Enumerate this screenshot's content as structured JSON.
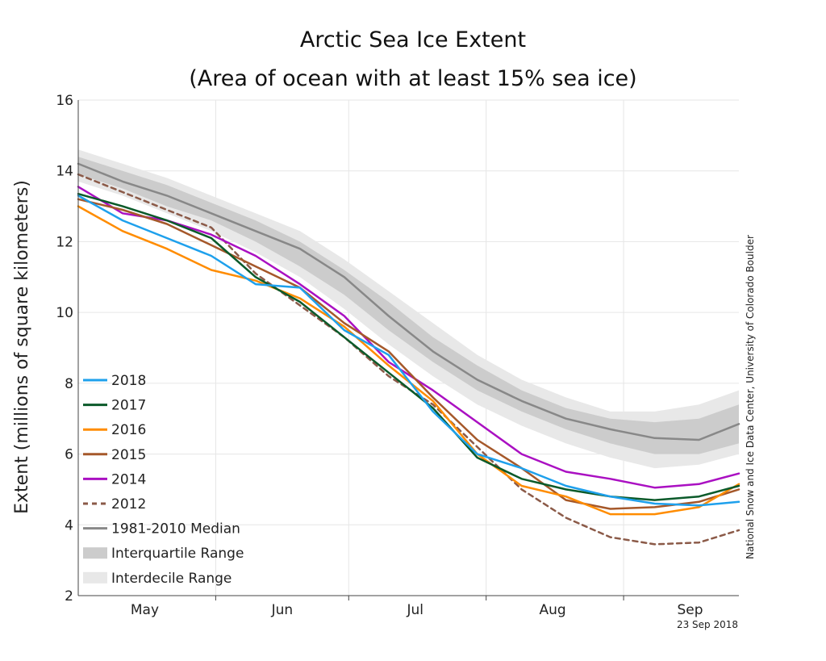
{
  "chart_data": {
    "type": "line",
    "title": "Arctic Sea Ice Extent",
    "subtitle": "(Area of ocean with at least 15% sea ice)",
    "ylabel": "Extent (millions of square kilometers)",
    "xlabel": "",
    "ylim": [
      2,
      16
    ],
    "yticks": [
      2,
      4,
      6,
      8,
      10,
      12,
      14,
      16
    ],
    "xlim": [
      0,
      149
    ],
    "x_unit": "days since 1 May",
    "month_ticks": [
      {
        "label": "May",
        "x": 0
      },
      {
        "label": "Jun",
        "x": 31
      },
      {
        "label": "Jul",
        "x": 61
      },
      {
        "label": "Aug",
        "x": 92
      },
      {
        "label": "Sep",
        "x": 123
      }
    ],
    "grid": true,
    "legend_position": "lower-left",
    "credit": "National Snow and Ice Data Center, University of Colorado Boulder",
    "date_stamp": "23 Sep 2018",
    "x": [
      0,
      10,
      20,
      30,
      40,
      50,
      60,
      70,
      80,
      90,
      100,
      110,
      120,
      130,
      140,
      149
    ],
    "interdecile": {
      "name": "Interdecile Range",
      "color": "#e8e8e8",
      "lower": [
        13.7,
        13.3,
        12.8,
        12.3,
        11.7,
        11.0,
        10.1,
        9.1,
        8.2,
        7.4,
        6.8,
        6.3,
        5.9,
        5.6,
        5.7,
        6.0
      ],
      "upper": [
        14.6,
        14.2,
        13.8,
        13.3,
        12.8,
        12.3,
        11.5,
        10.6,
        9.7,
        8.8,
        8.1,
        7.6,
        7.2,
        7.2,
        7.4,
        7.8
      ]
    },
    "interquartile": {
      "name": "Interquartile Range",
      "color": "#cccccc",
      "lower": [
        13.9,
        13.5,
        13.0,
        12.6,
        12.0,
        11.3,
        10.5,
        9.5,
        8.6,
        7.8,
        7.2,
        6.7,
        6.3,
        6.0,
        6.0,
        6.3
      ],
      "upper": [
        14.4,
        14.0,
        13.6,
        13.1,
        12.6,
        12.0,
        11.2,
        10.3,
        9.3,
        8.5,
        7.8,
        7.3,
        7.0,
        6.9,
        7.0,
        7.4
      ]
    },
    "series": [
      {
        "name": "1981-2010 Median",
        "color": "#888888",
        "dash": false,
        "values": [
          14.2,
          13.7,
          13.3,
          12.8,
          12.3,
          11.8,
          11.0,
          9.9,
          8.9,
          8.1,
          7.5,
          7.0,
          6.7,
          6.45,
          6.4,
          6.85
        ]
      },
      {
        "name": "2018",
        "color": "#1ea0ec",
        "dash": false,
        "values": [
          13.3,
          12.6,
          12.1,
          11.6,
          10.8,
          10.7,
          9.5,
          8.8,
          7.2,
          6.0,
          5.6,
          5.1,
          4.8,
          4.6,
          4.55,
          4.65
        ]
      },
      {
        "name": "2017",
        "color": "#0b5a2a",
        "dash": false,
        "values": [
          13.35,
          13.0,
          12.6,
          12.1,
          11.0,
          10.3,
          9.3,
          8.3,
          7.3,
          5.9,
          5.3,
          5.0,
          4.8,
          4.7,
          4.8,
          5.1
        ]
      },
      {
        "name": "2016",
        "color": "#ff8c00",
        "dash": false,
        "values": [
          13.0,
          12.3,
          11.8,
          11.2,
          10.9,
          10.4,
          9.6,
          8.5,
          7.5,
          6.0,
          5.1,
          4.8,
          4.3,
          4.3,
          4.5,
          5.15
        ]
      },
      {
        "name": "2015",
        "color": "#a5582a",
        "dash": false,
        "values": [
          13.2,
          12.9,
          12.5,
          11.9,
          11.3,
          10.7,
          9.7,
          8.9,
          7.6,
          6.4,
          5.6,
          4.7,
          4.45,
          4.5,
          4.65,
          5.0
        ]
      },
      {
        "name": "2014",
        "color": "#aa10c2",
        "dash": false,
        "values": [
          13.55,
          12.8,
          12.6,
          12.2,
          11.6,
          10.8,
          9.9,
          8.6,
          7.8,
          6.9,
          6.0,
          5.5,
          5.3,
          5.05,
          5.15,
          5.45
        ]
      },
      {
        "name": "2012",
        "color": "#8b5a48",
        "dash": true,
        "values": [
          13.9,
          13.4,
          12.9,
          12.4,
          11.1,
          10.2,
          9.3,
          8.2,
          7.4,
          6.2,
          5.0,
          4.2,
          3.65,
          3.45,
          3.5,
          3.85
        ]
      }
    ],
    "legend": [
      {
        "name": "2018",
        "kind": "line",
        "color": "#1ea0ec"
      },
      {
        "name": "2017",
        "kind": "line",
        "color": "#0b5a2a"
      },
      {
        "name": "2016",
        "kind": "line",
        "color": "#ff8c00"
      },
      {
        "name": "2015",
        "kind": "line",
        "color": "#a5582a"
      },
      {
        "name": "2014",
        "kind": "line",
        "color": "#aa10c2"
      },
      {
        "name": "2012",
        "kind": "dash",
        "color": "#8b5a48"
      },
      {
        "name": "1981-2010 Median",
        "kind": "line",
        "color": "#888888"
      },
      {
        "name": "Interquartile Range",
        "kind": "band",
        "color": "#cccccc"
      },
      {
        "name": "Interdecile Range",
        "kind": "band",
        "color": "#e8e8e8"
      }
    ]
  }
}
